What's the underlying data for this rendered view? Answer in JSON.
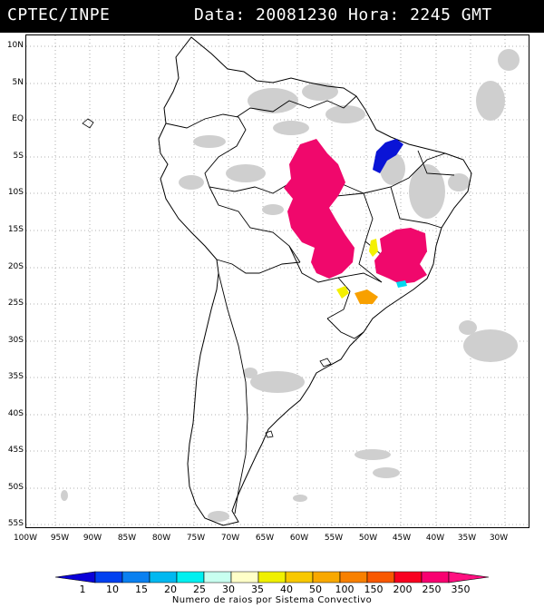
{
  "header": {
    "source": "CPTEC/INPE",
    "datetime": "Data: 20081230 Hora: 2245 GMT"
  },
  "lat_labels": [
    "10N",
    "5N",
    "EQ",
    "5S",
    "10S",
    "15S",
    "20S",
    "25S",
    "30S",
    "35S",
    "40S",
    "45S",
    "50S",
    "55S"
  ],
  "lon_labels": [
    "100W",
    "95W",
    "90W",
    "85W",
    "80W",
    "75W",
    "70W",
    "65W",
    "60W",
    "55W",
    "50W",
    "45W",
    "40W",
    "35W",
    "30W"
  ],
  "colorbar": {
    "title": "Numero de raios por Sistema Convectivo",
    "labels": [
      "1",
      "10",
      "15",
      "20",
      "25",
      "30",
      "35",
      "40",
      "50",
      "100",
      "150",
      "200",
      "250",
      "350"
    ],
    "colors": [
      "#0a00d8",
      "#0040f0",
      "#0a80f0",
      "#00b8f0",
      "#00f0f0",
      "#c8fff0",
      "#ffffc8",
      "#f0f000",
      "#f8c800",
      "#f8a800",
      "#f88000",
      "#f85800",
      "#f80020",
      "#f80070",
      "#ff1080"
    ]
  }
}
